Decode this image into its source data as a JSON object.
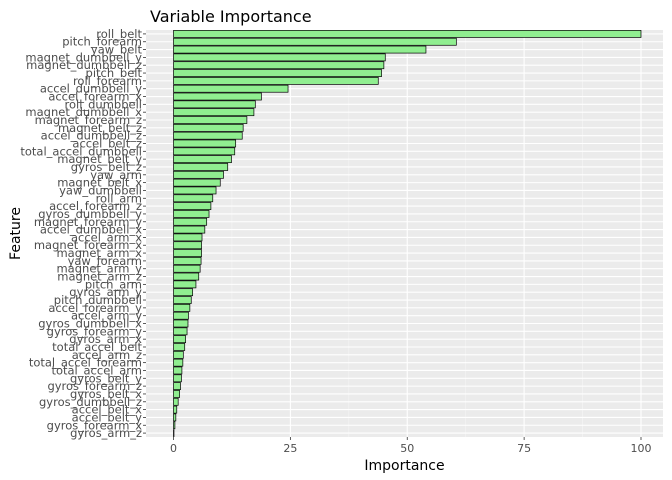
{
  "chart_data": {
    "type": "bar",
    "orientation": "horizontal",
    "title": "Variable Importance",
    "xlabel": "Importance",
    "ylabel": "Feature",
    "xlim": [
      0,
      100
    ],
    "x_ticks": [
      0,
      25,
      50,
      75,
      100
    ],
    "grid": true,
    "legend": "none",
    "bar_fill": "#90ee90",
    "bar_stroke": "#000000",
    "panel_background": "#ebebeb",
    "categories": [
      "roll_belt",
      "pitch_forearm",
      "yaw_belt",
      "magnet_dumbbell_y",
      "magnet_dumbbell_z",
      "pitch_belt",
      "roll_forearm",
      "accel_dumbbell_y",
      "accel_forearm_x",
      "roll_dumbbell",
      "magnet_dumbbell_x",
      "magnet_forearm_z",
      "magnet_belt_z",
      "accel_dumbbell_z",
      "accel_belt_z",
      "total_accel_dumbbell",
      "magnet_belt_y",
      "gyros_belt_z",
      "yaw_arm",
      "magnet_belt_x",
      "yaw_dumbbell",
      "roll_arm",
      "accel_forearm_z",
      "gyros_dumbbell_y",
      "magnet_forearm_y",
      "accel_dumbbell_x",
      "accel_arm_x",
      "magnet_forearm_x",
      "magnet_arm_x",
      "yaw_forearm",
      "magnet_arm_y",
      "magnet_arm_z",
      "pitch_arm",
      "gyros_arm_y",
      "pitch_dumbbell",
      "accel_forearm_y",
      "accel_arm_y",
      "gyros_dumbbell_x",
      "gyros_forearm_y",
      "gyros_arm_x",
      "total_accel_belt",
      "accel_arm_z",
      "total_accel_forearm",
      "total_accel_arm",
      "gyros_belt_y",
      "gyros_forearm_z",
      "gyros_belt_x",
      "gyros_dumbbell_z",
      "accel_belt_x",
      "accel_belt_y",
      "gyros_forearm_x",
      "gyros_arm_z"
    ],
    "values": [
      100,
      60.5,
      54,
      45.3,
      45,
      44.5,
      43.8,
      24.5,
      18.8,
      17.5,
      17.2,
      15.7,
      14.9,
      14.7,
      13.3,
      13.1,
      12.4,
      11.6,
      10.7,
      10.0,
      9.1,
      8.4,
      8.0,
      7.6,
      7.1,
      6.7,
      6.1,
      6.0,
      6.0,
      5.9,
      5.7,
      5.4,
      4.8,
      4.1,
      3.8,
      3.5,
      3.2,
      3.1,
      2.9,
      2.6,
      2.4,
      2.1,
      2.0,
      1.8,
      1.7,
      1.5,
      1.3,
      1.0,
      0.7,
      0.5,
      0.3,
      0.1
    ]
  }
}
